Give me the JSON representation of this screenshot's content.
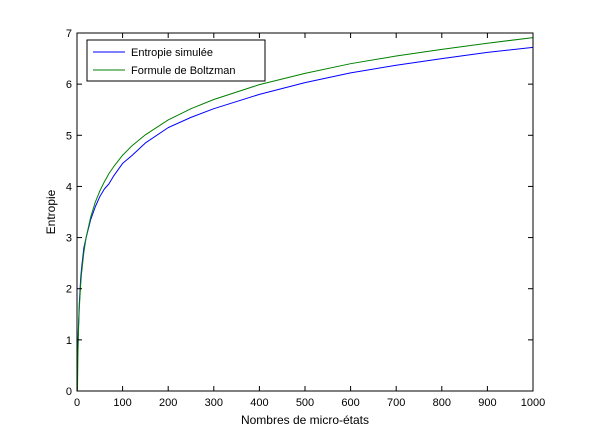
{
  "chart_data": {
    "type": "line",
    "title": "",
    "xlabel": "Nombres de micro-états",
    "ylabel": "Entropie",
    "xlim": [
      0,
      1000
    ],
    "ylim": [
      0,
      7
    ],
    "xticks": [
      0,
      100,
      200,
      300,
      400,
      500,
      600,
      700,
      800,
      900,
      1000
    ],
    "yticks": [
      0,
      1,
      2,
      3,
      4,
      5,
      6,
      7
    ],
    "grid": false,
    "legend_position": "top-left",
    "series": [
      {
        "name": "Entropie simulée",
        "color": "#0000ff",
        "x": [
          2,
          3,
          5,
          8,
          10,
          15,
          20,
          30,
          40,
          50,
          60,
          70,
          80,
          100,
          120,
          150,
          200,
          250,
          300,
          400,
          500,
          600,
          700,
          800,
          900,
          1000
        ],
        "y": [
          0.8,
          1.2,
          1.7,
          2.2,
          2.4,
          2.8,
          3.0,
          3.35,
          3.6,
          3.8,
          3.95,
          4.05,
          4.2,
          4.45,
          4.6,
          4.85,
          5.15,
          5.35,
          5.52,
          5.8,
          6.03,
          6.22,
          6.37,
          6.5,
          6.62,
          6.72
        ]
      },
      {
        "name": "Formule de Boltzman",
        "color": "#008000",
        "x": [
          1,
          2,
          3,
          5,
          8,
          10,
          15,
          20,
          30,
          40,
          50,
          60,
          70,
          80,
          100,
          120,
          150,
          200,
          250,
          300,
          400,
          500,
          600,
          700,
          800,
          900,
          1000
        ],
        "y": [
          0.0,
          0.69,
          1.1,
          1.61,
          2.08,
          2.3,
          2.71,
          3.0,
          3.4,
          3.69,
          3.91,
          4.09,
          4.25,
          4.38,
          4.61,
          4.79,
          5.01,
          5.3,
          5.52,
          5.7,
          5.99,
          6.21,
          6.4,
          6.55,
          6.68,
          6.8,
          6.91
        ]
      }
    ]
  }
}
